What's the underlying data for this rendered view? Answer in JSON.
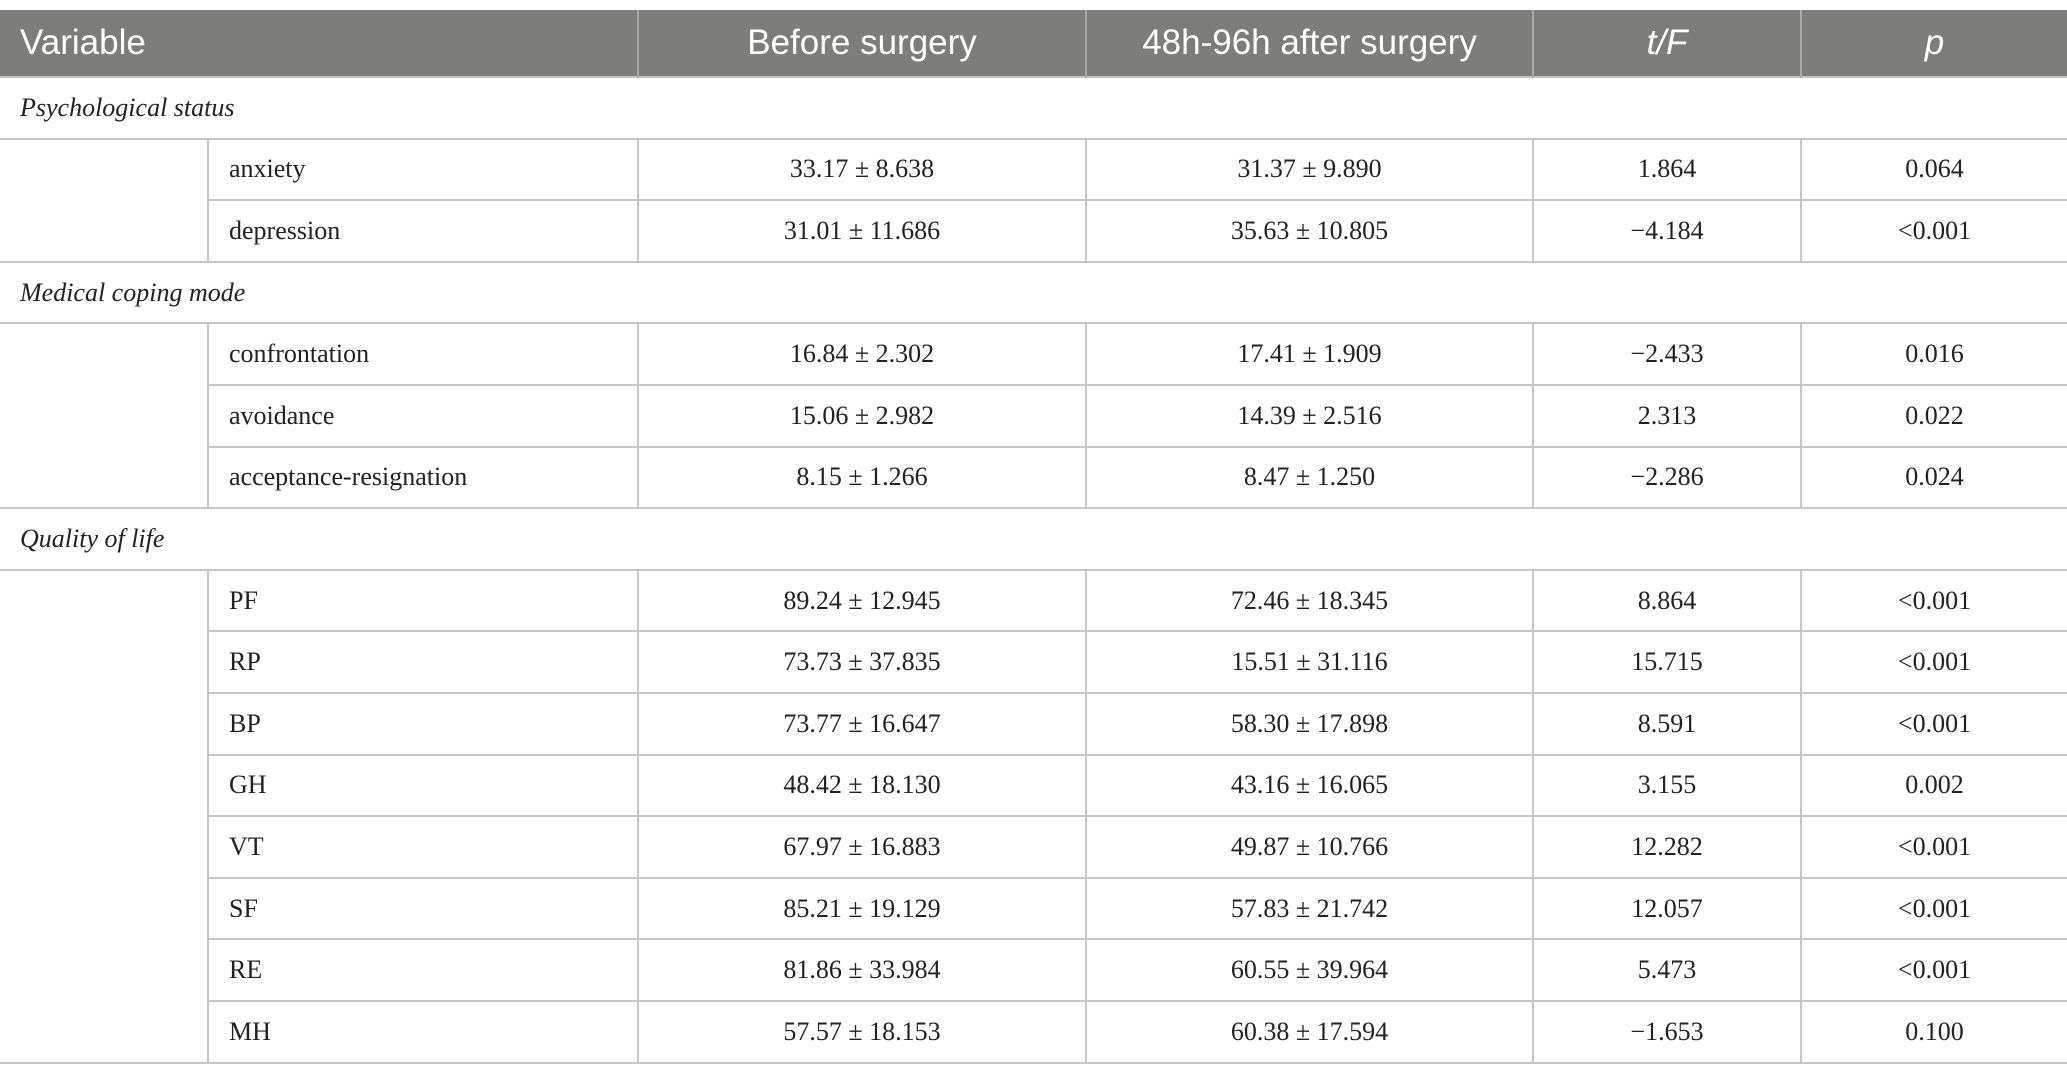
{
  "headers": {
    "variable": "Variable",
    "before": "Before surgery",
    "after": "48h-96h after surgery",
    "tf": "t/F",
    "p": "p"
  },
  "sections": [
    {
      "title": "Psychological status",
      "rows": [
        {
          "label": "anxiety",
          "before": "33.17 ± 8.638",
          "after": "31.37 ± 9.890",
          "tf": "1.864",
          "p": "0.064"
        },
        {
          "label": "depression",
          "before": "31.01 ± 11.686",
          "after": "35.63 ± 10.805",
          "tf": "−4.184",
          "p": "<0.001"
        }
      ]
    },
    {
      "title": "Medical coping mode",
      "rows": [
        {
          "label": "confrontation",
          "before": "16.84 ± 2.302",
          "after": "17.41 ± 1.909",
          "tf": "−2.433",
          "p": "0.016"
        },
        {
          "label": "avoidance",
          "before": "15.06 ± 2.982",
          "after": "14.39 ± 2.516",
          "tf": "2.313",
          "p": "0.022"
        },
        {
          "label": "acceptance-resignation",
          "before": "8.15 ± 1.266",
          "after": "8.47 ± 1.250",
          "tf": "−2.286",
          "p": "0.024"
        }
      ]
    },
    {
      "title": "Quality of life",
      "rows": [
        {
          "label": "PF",
          "before": "89.24 ± 12.945",
          "after": "72.46 ± 18.345",
          "tf": "8.864",
          "p": "<0.001"
        },
        {
          "label": "RP",
          "before": "73.73 ± 37.835",
          "after": "15.51 ± 31.116",
          "tf": "15.715",
          "p": "<0.001"
        },
        {
          "label": "BP",
          "before": "73.77 ± 16.647",
          "after": "58.30 ± 17.898",
          "tf": "8.591",
          "p": "<0.001"
        },
        {
          "label": "GH",
          "before": "48.42 ± 18.130",
          "after": "43.16 ± 16.065",
          "tf": "3.155",
          "p": "0.002"
        },
        {
          "label": "VT",
          "before": "67.97 ± 16.883",
          "after": "49.87 ± 10.766",
          "tf": "12.282",
          "p": "<0.001"
        },
        {
          "label": "SF",
          "before": "85.21 ± 19.129",
          "after": "57.83 ± 21.742",
          "tf": "12.057",
          "p": "<0.001"
        },
        {
          "label": "RE",
          "before": "81.86 ± 33.984",
          "after": "60.55 ± 39.964",
          "tf": "5.473",
          "p": "<0.001"
        },
        {
          "label": "MH",
          "before": "57.57 ± 18.153",
          "after": "60.38 ± 17.594",
          "tf": "−1.653",
          "p": "0.100"
        }
      ]
    }
  ]
}
